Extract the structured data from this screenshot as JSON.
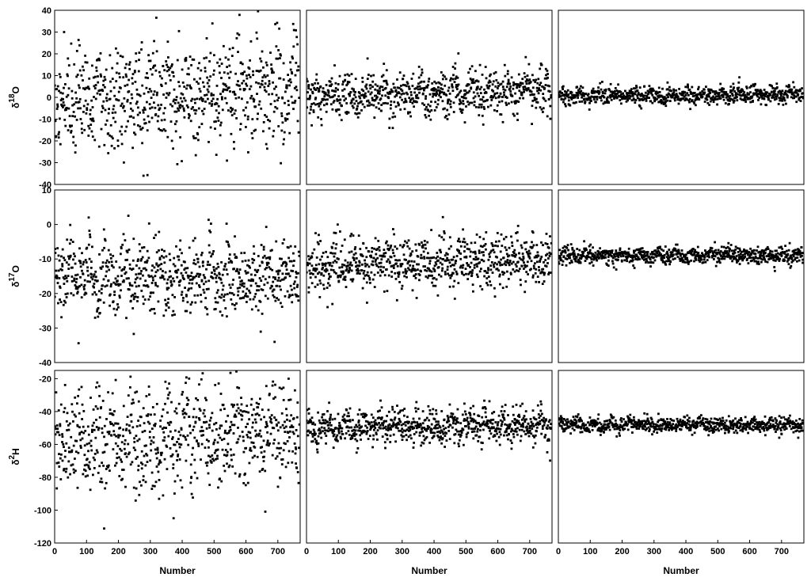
{
  "figure": {
    "x_axis_label": "Number",
    "row_labels": [
      {
        "base": "δ",
        "sup": "18",
        "rest": "O"
      },
      {
        "base": "δ",
        "sup": "17",
        "rest": "O"
      },
      {
        "base": "δ",
        "sup": "2",
        "rest": "H"
      }
    ]
  },
  "chart_data": [
    {
      "type": "scatter",
      "row": 0,
      "col": 0,
      "ylabel": "δ18O",
      "xlabel": "",
      "xlim": [
        0,
        770
      ],
      "ylim": [
        -40,
        40
      ],
      "yticks": [
        -40,
        -30,
        -20,
        -10,
        0,
        10,
        20,
        30,
        40
      ],
      "xticks": [],
      "series": [
        {
          "color": "#000000",
          "mean": -2,
          "spread": 16,
          "trend": 8,
          "points": 780,
          "seed": 11
        }
      ]
    },
    {
      "type": "scatter",
      "row": 0,
      "col": 1,
      "ylabel": "",
      "xlabel": "",
      "xlim": [
        0,
        770
      ],
      "ylim": [
        -40,
        40
      ],
      "yticks": [],
      "xticks": [],
      "series": [
        {
          "color": "#000000",
          "mean": 0,
          "spread": 7,
          "trend": 3,
          "points": 780,
          "seed": 12
        }
      ]
    },
    {
      "type": "scatter",
      "row": 0,
      "col": 2,
      "ylabel": "",
      "xlabel": "",
      "xlim": [
        0,
        770
      ],
      "ylim": [
        -40,
        40
      ],
      "yticks": [],
      "xticks": [],
      "series": [
        {
          "color": "#000000",
          "mean": 0.5,
          "spread": 2.6,
          "trend": 1,
          "points": 780,
          "seed": 13
        }
      ]
    },
    {
      "type": "scatter",
      "row": 1,
      "col": 0,
      "ylabel": "δ17O",
      "xlabel": "",
      "xlim": [
        0,
        770
      ],
      "ylim": [
        -40,
        10
      ],
      "yticks": [
        -40,
        -30,
        -20,
        -10,
        0,
        10
      ],
      "xticks": [],
      "series": [
        {
          "color": "#000000",
          "mean": -15,
          "spread": 7,
          "trend": 0,
          "points": 780,
          "seed": 21
        }
      ]
    },
    {
      "type": "scatter",
      "row": 1,
      "col": 1,
      "ylabel": "",
      "xlabel": "",
      "xlim": [
        0,
        770
      ],
      "ylim": [
        -40,
        10
      ],
      "yticks": [],
      "xticks": [],
      "series": [
        {
          "color": "#000000",
          "mean": -12,
          "spread": 5,
          "trend": 2,
          "points": 780,
          "seed": 22
        }
      ]
    },
    {
      "type": "scatter",
      "row": 1,
      "col": 2,
      "ylabel": "",
      "xlabel": "",
      "xlim": [
        0,
        770
      ],
      "ylim": [
        -40,
        10
      ],
      "yticks": [],
      "xticks": [],
      "series": [
        {
          "color": "#000000",
          "mean": -9,
          "spread": 1.6,
          "trend": 0,
          "points": 780,
          "seed": 23
        }
      ]
    },
    {
      "type": "scatter",
      "row": 2,
      "col": 0,
      "ylabel": "δ2H",
      "xlabel": "Number",
      "xlim": [
        0,
        770
      ],
      "ylim": [
        -120,
        -15
      ],
      "yticks": [
        -120,
        -100,
        -80,
        -60,
        -40,
        -20
      ],
      "xticks": [
        0,
        100,
        200,
        300,
        400,
        500,
        600,
        700
      ],
      "series": [
        {
          "color": "#000000",
          "mean": -60,
          "spread": 20,
          "trend": 10,
          "points": 780,
          "seed": 31
        }
      ]
    },
    {
      "type": "scatter",
      "row": 2,
      "col": 1,
      "ylabel": "",
      "xlabel": "Number",
      "xlim": [
        0,
        770
      ],
      "ylim": [
        -120,
        -15
      ],
      "yticks": [],
      "xticks": [
        0,
        100,
        200,
        300,
        400,
        500,
        600,
        700
      ],
      "series": [
        {
          "color": "#000000",
          "mean": -50,
          "spread": 7,
          "trend": 2,
          "points": 780,
          "seed": 32
        }
      ]
    },
    {
      "type": "scatter",
      "row": 2,
      "col": 2,
      "ylabel": "",
      "xlabel": "Number",
      "xlim": [
        0,
        770
      ],
      "ylim": [
        -120,
        -15
      ],
      "yticks": [],
      "xticks": [
        0,
        100,
        200,
        300,
        400,
        500,
        600,
        700
      ],
      "series": [
        {
          "color": "#000000",
          "mean": -48,
          "spread": 3,
          "trend": 0,
          "points": 780,
          "seed": 33
        }
      ]
    }
  ]
}
